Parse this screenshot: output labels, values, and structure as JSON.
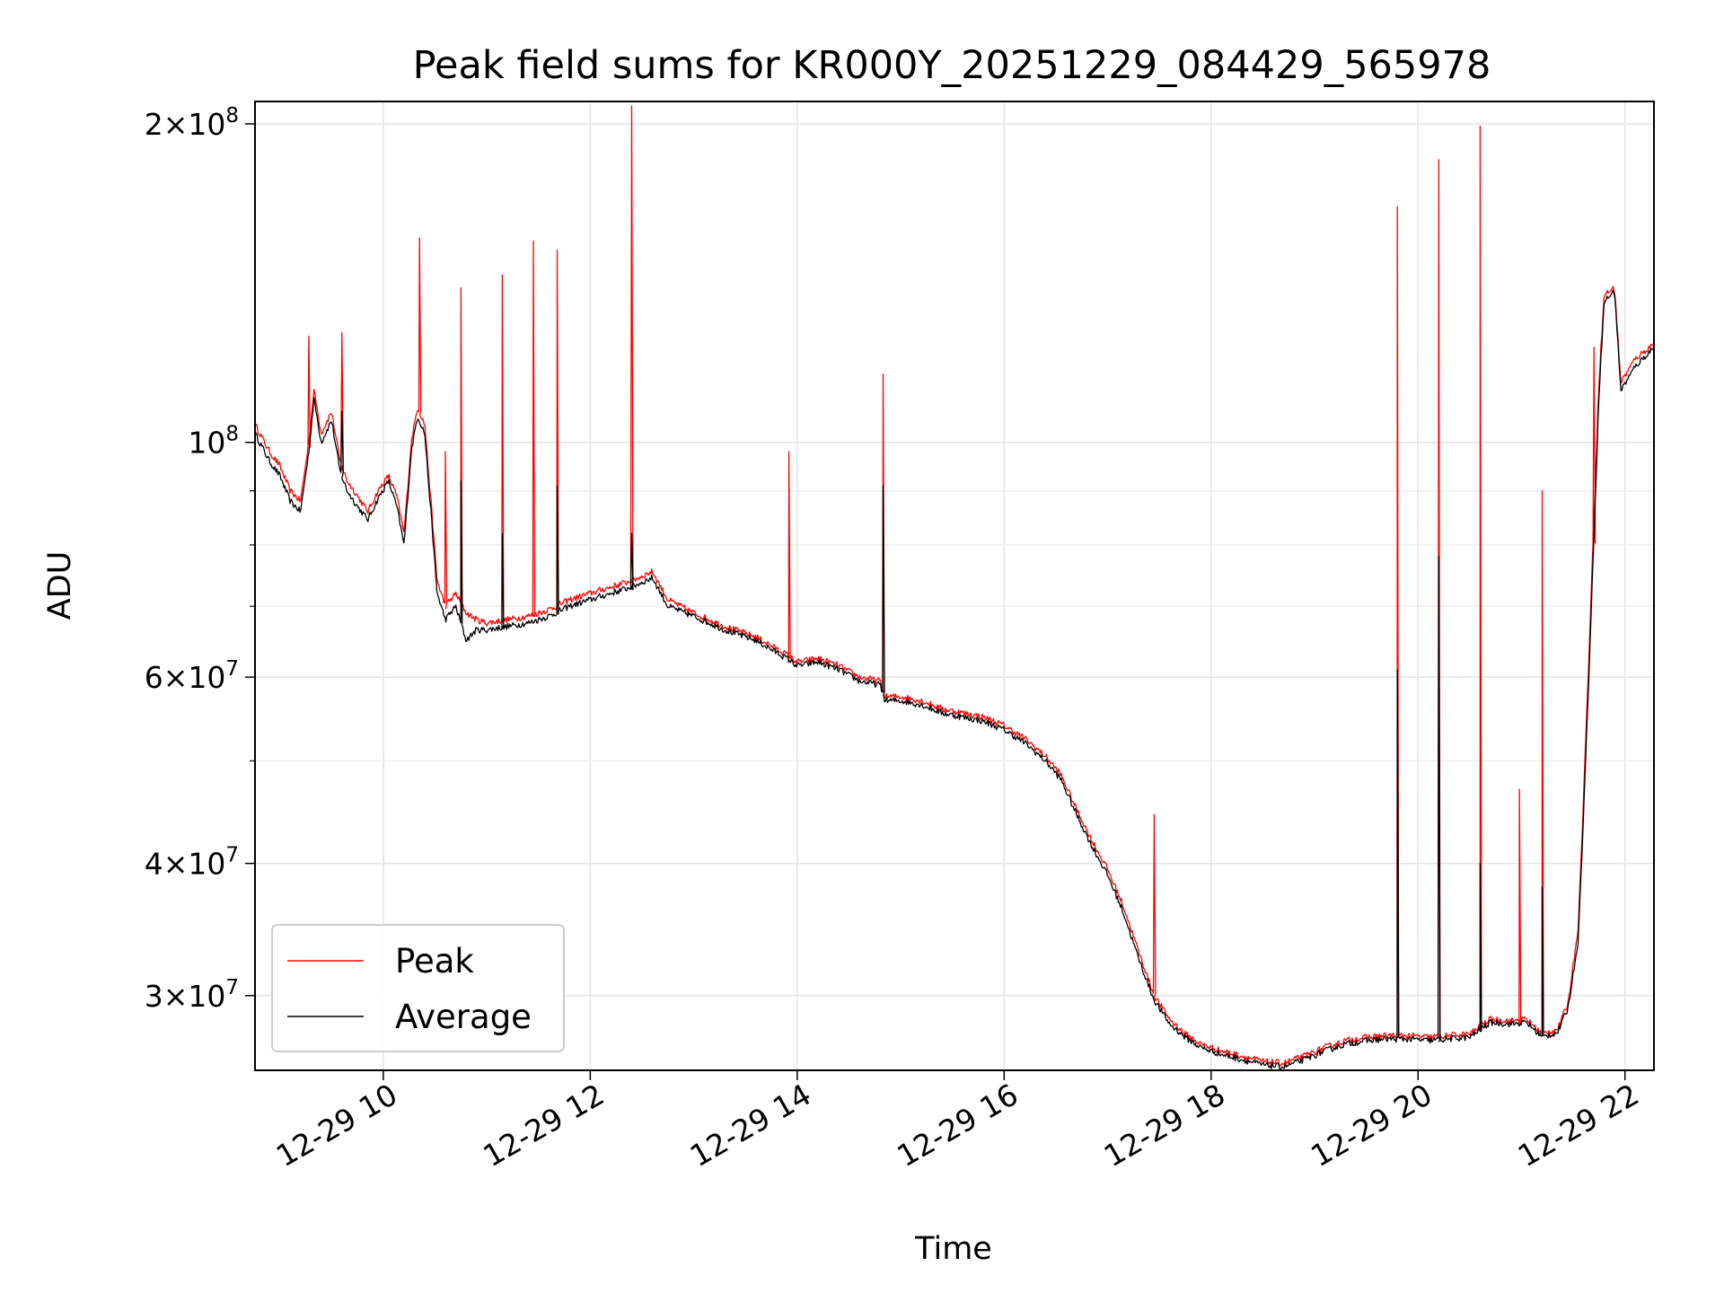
{
  "chart_data": {
    "type": "line",
    "title": "Peak field sums for KR000Y_20251229_084429_565978",
    "xlabel": "Time",
    "ylabel": "ADU",
    "yscale": "log",
    "xlim": [
      8.76,
      22.28
    ],
    "ylim": [
      25500000,
      210000000
    ],
    "grid": true,
    "legend_position": "lower-left",
    "x_ticks": [
      {
        "value": 10,
        "label": "12-29 10"
      },
      {
        "value": 12,
        "label": "12-29 12"
      },
      {
        "value": 14,
        "label": "12-29 14"
      },
      {
        "value": 16,
        "label": "12-29 16"
      },
      {
        "value": 18,
        "label": "12-29 18"
      },
      {
        "value": 20,
        "label": "12-29 20"
      },
      {
        "value": 22,
        "label": "12-29 22"
      }
    ],
    "y_major_ticks": [
      {
        "value": 30000000,
        "mantissa": "3",
        "exponent": "7"
      },
      {
        "value": 40000000,
        "mantissa": "4",
        "exponent": "7"
      },
      {
        "value": 60000000,
        "mantissa": "6",
        "exponent": "7"
      },
      {
        "value": 100000000,
        "mantissa": "",
        "exponent": "8"
      },
      {
        "value": 200000000,
        "mantissa": "2",
        "exponent": "8"
      }
    ],
    "y_minor_ticks": [
      50000000,
      70000000,
      80000000,
      90000000
    ],
    "series": [
      {
        "name": "Peak",
        "color": "#ff0000",
        "baseline": [
          [
            8.76,
            104000000
          ],
          [
            8.9,
            98000000
          ],
          [
            9.0,
            95000000
          ],
          [
            9.1,
            90000000
          ],
          [
            9.2,
            88000000
          ],
          [
            9.28,
            100000000
          ],
          [
            9.33,
            112000000
          ],
          [
            9.4,
            102000000
          ],
          [
            9.5,
            107000000
          ],
          [
            9.58,
            96000000
          ],
          [
            9.65,
            92000000
          ],
          [
            9.75,
            89000000
          ],
          [
            9.85,
            86000000
          ],
          [
            9.95,
            90000000
          ],
          [
            10.05,
            93000000
          ],
          [
            10.13,
            89000000
          ],
          [
            10.2,
            82000000
          ],
          [
            10.27,
            100000000
          ],
          [
            10.33,
            108000000
          ],
          [
            10.4,
            104000000
          ],
          [
            10.46,
            88000000
          ],
          [
            10.52,
            74000000
          ],
          [
            10.6,
            70000000
          ],
          [
            10.7,
            72000000
          ],
          [
            10.8,
            69000000
          ],
          [
            10.9,
            68000000
          ],
          [
            11.0,
            67500000
          ],
          [
            11.2,
            68000000
          ],
          [
            11.4,
            68500000
          ],
          [
            11.6,
            69500000
          ],
          [
            11.8,
            71000000
          ],
          [
            12.0,
            72000000
          ],
          [
            12.2,
            73000000
          ],
          [
            12.4,
            74000000
          ],
          [
            12.6,
            75500000
          ],
          [
            12.75,
            71000000
          ],
          [
            13.0,
            69000000
          ],
          [
            13.3,
            67000000
          ],
          [
            13.6,
            65500000
          ],
          [
            13.9,
            63000000
          ],
          [
            14.0,
            62000000
          ],
          [
            14.2,
            62500000
          ],
          [
            14.4,
            61500000
          ],
          [
            14.6,
            60000000
          ],
          [
            14.8,
            59500000
          ],
          [
            14.85,
            57500000
          ],
          [
            15.0,
            57500000
          ],
          [
            15.2,
            57000000
          ],
          [
            15.4,
            56000000
          ],
          [
            15.6,
            55500000
          ],
          [
            15.8,
            55000000
          ],
          [
            16.0,
            54000000
          ],
          [
            16.2,
            52500000
          ],
          [
            16.4,
            50500000
          ],
          [
            16.55,
            48500000
          ],
          [
            16.7,
            45000000
          ],
          [
            16.85,
            42000000
          ],
          [
            17.0,
            39500000
          ],
          [
            17.15,
            36500000
          ],
          [
            17.3,
            33000000
          ],
          [
            17.45,
            30000000
          ],
          [
            17.6,
            28500000
          ],
          [
            17.75,
            27600000
          ],
          [
            17.9,
            27000000
          ],
          [
            18.1,
            26600000
          ],
          [
            18.3,
            26300000
          ],
          [
            18.5,
            26000000
          ],
          [
            18.7,
            25900000
          ],
          [
            18.9,
            26300000
          ],
          [
            19.1,
            26800000
          ],
          [
            19.3,
            27200000
          ],
          [
            19.5,
            27400000
          ],
          [
            19.7,
            27500000
          ],
          [
            19.9,
            27500000
          ],
          [
            20.1,
            27400000
          ],
          [
            20.3,
            27500000
          ],
          [
            20.5,
            27600000
          ],
          [
            20.7,
            28500000
          ],
          [
            20.9,
            28400000
          ],
          [
            21.05,
            28500000
          ],
          [
            21.2,
            27600000
          ],
          [
            21.35,
            27900000
          ],
          [
            21.45,
            29500000
          ],
          [
            21.55,
            35000000
          ],
          [
            21.62,
            52000000
          ],
          [
            21.68,
            75000000
          ],
          [
            21.75,
            115000000
          ],
          [
            21.8,
            138000000
          ],
          [
            21.9,
            140000000
          ],
          [
            21.96,
            114000000
          ],
          [
            22.1,
            120000000
          ],
          [
            22.28,
            124000000
          ]
        ],
        "spikes": [
          [
            9.28,
            126000000
          ],
          [
            9.6,
            127000000
          ],
          [
            10.35,
            156000000
          ],
          [
            10.6,
            98000000
          ],
          [
            10.75,
            140000000
          ],
          [
            11.15,
            144000000
          ],
          [
            11.45,
            155000000
          ],
          [
            11.68,
            152000000
          ],
          [
            12.4,
            208000000
          ],
          [
            13.92,
            98000000
          ],
          [
            14.83,
            116000000
          ],
          [
            17.45,
            44500000
          ],
          [
            19.8,
            167000000
          ],
          [
            20.2,
            185000000
          ],
          [
            20.6,
            199000000
          ],
          [
            20.98,
            47000000
          ],
          [
            21.2,
            90000000
          ],
          [
            21.7,
            123000000
          ]
        ]
      },
      {
        "name": "Average",
        "color": "#000000",
        "baseline": [
          [
            8.76,
            102000000
          ],
          [
            8.9,
            96000000
          ],
          [
            9.0,
            93000000
          ],
          [
            9.1,
            88000000
          ],
          [
            9.2,
            86000000
          ],
          [
            9.28,
            98000000
          ],
          [
            9.33,
            110000000
          ],
          [
            9.4,
            100000000
          ],
          [
            9.5,
            105000000
          ],
          [
            9.58,
            94000000
          ],
          [
            9.65,
            90000000
          ],
          [
            9.75,
            87000000
          ],
          [
            9.85,
            84500000
          ],
          [
            9.95,
            88500000
          ],
          [
            10.05,
            92000000
          ],
          [
            10.13,
            87000000
          ],
          [
            10.2,
            80000000
          ],
          [
            10.27,
            98000000
          ],
          [
            10.33,
            106000000
          ],
          [
            10.4,
            102000000
          ],
          [
            10.46,
            86000000
          ],
          [
            10.52,
            72000000
          ],
          [
            10.6,
            68000000
          ],
          [
            10.7,
            70000000
          ],
          [
            10.8,
            65000000
          ],
          [
            10.9,
            66500000
          ],
          [
            11.0,
            66500000
          ],
          [
            11.2,
            67000000
          ],
          [
            11.4,
            67500000
          ],
          [
            11.6,
            68500000
          ],
          [
            11.8,
            70000000
          ],
          [
            12.0,
            71000000
          ],
          [
            12.2,
            72000000
          ],
          [
            12.4,
            73000000
          ],
          [
            12.6,
            74500000
          ],
          [
            12.75,
            70000000
          ],
          [
            13.0,
            68500000
          ],
          [
            13.3,
            66500000
          ],
          [
            13.6,
            65000000
          ],
          [
            13.9,
            62500000
          ],
          [
            14.0,
            61500000
          ],
          [
            14.2,
            62000000
          ],
          [
            14.4,
            61000000
          ],
          [
            14.6,
            59500000
          ],
          [
            14.8,
            59000000
          ],
          [
            14.85,
            57000000
          ],
          [
            15.0,
            57000000
          ],
          [
            15.2,
            56500000
          ],
          [
            15.4,
            55500000
          ],
          [
            15.6,
            55000000
          ],
          [
            15.8,
            54500000
          ],
          [
            16.0,
            53500000
          ],
          [
            16.2,
            52000000
          ],
          [
            16.4,
            50000000
          ],
          [
            16.55,
            48000000
          ],
          [
            16.7,
            44500000
          ],
          [
            16.85,
            41500000
          ],
          [
            17.0,
            39000000
          ],
          [
            17.15,
            36000000
          ],
          [
            17.3,
            32500000
          ],
          [
            17.45,
            29700000
          ],
          [
            17.6,
            28200000
          ],
          [
            17.75,
            27400000
          ],
          [
            17.9,
            26800000
          ],
          [
            18.1,
            26400000
          ],
          [
            18.3,
            26100000
          ],
          [
            18.5,
            25800000
          ],
          [
            18.7,
            25700000
          ],
          [
            18.9,
            26100000
          ],
          [
            19.1,
            26600000
          ],
          [
            19.3,
            27000000
          ],
          [
            19.5,
            27200000
          ],
          [
            19.7,
            27300000
          ],
          [
            19.9,
            27300000
          ],
          [
            20.1,
            27200000
          ],
          [
            20.3,
            27300000
          ],
          [
            20.5,
            27400000
          ],
          [
            20.7,
            28300000
          ],
          [
            20.9,
            28200000
          ],
          [
            21.05,
            28300000
          ],
          [
            21.2,
            27400000
          ],
          [
            21.35,
            27700000
          ],
          [
            21.45,
            29200000
          ],
          [
            21.55,
            34000000
          ],
          [
            21.62,
            50000000
          ],
          [
            21.68,
            72000000
          ],
          [
            21.75,
            112000000
          ],
          [
            21.8,
            136000000
          ],
          [
            21.9,
            139000000
          ],
          [
            21.96,
            112000000
          ],
          [
            22.1,
            118000000
          ],
          [
            22.28,
            123000000
          ]
        ],
        "spikes": [
          [
            9.6,
            107000000
          ],
          [
            10.75,
            92000000
          ],
          [
            11.15,
            82000000
          ],
          [
            11.68,
            91000000
          ],
          [
            12.4,
            82000000
          ],
          [
            14.83,
            91000000
          ],
          [
            19.8,
            61000000
          ],
          [
            20.2,
            78000000
          ],
          [
            20.6,
            40000000
          ],
          [
            21.2,
            38000000
          ]
        ]
      }
    ]
  }
}
